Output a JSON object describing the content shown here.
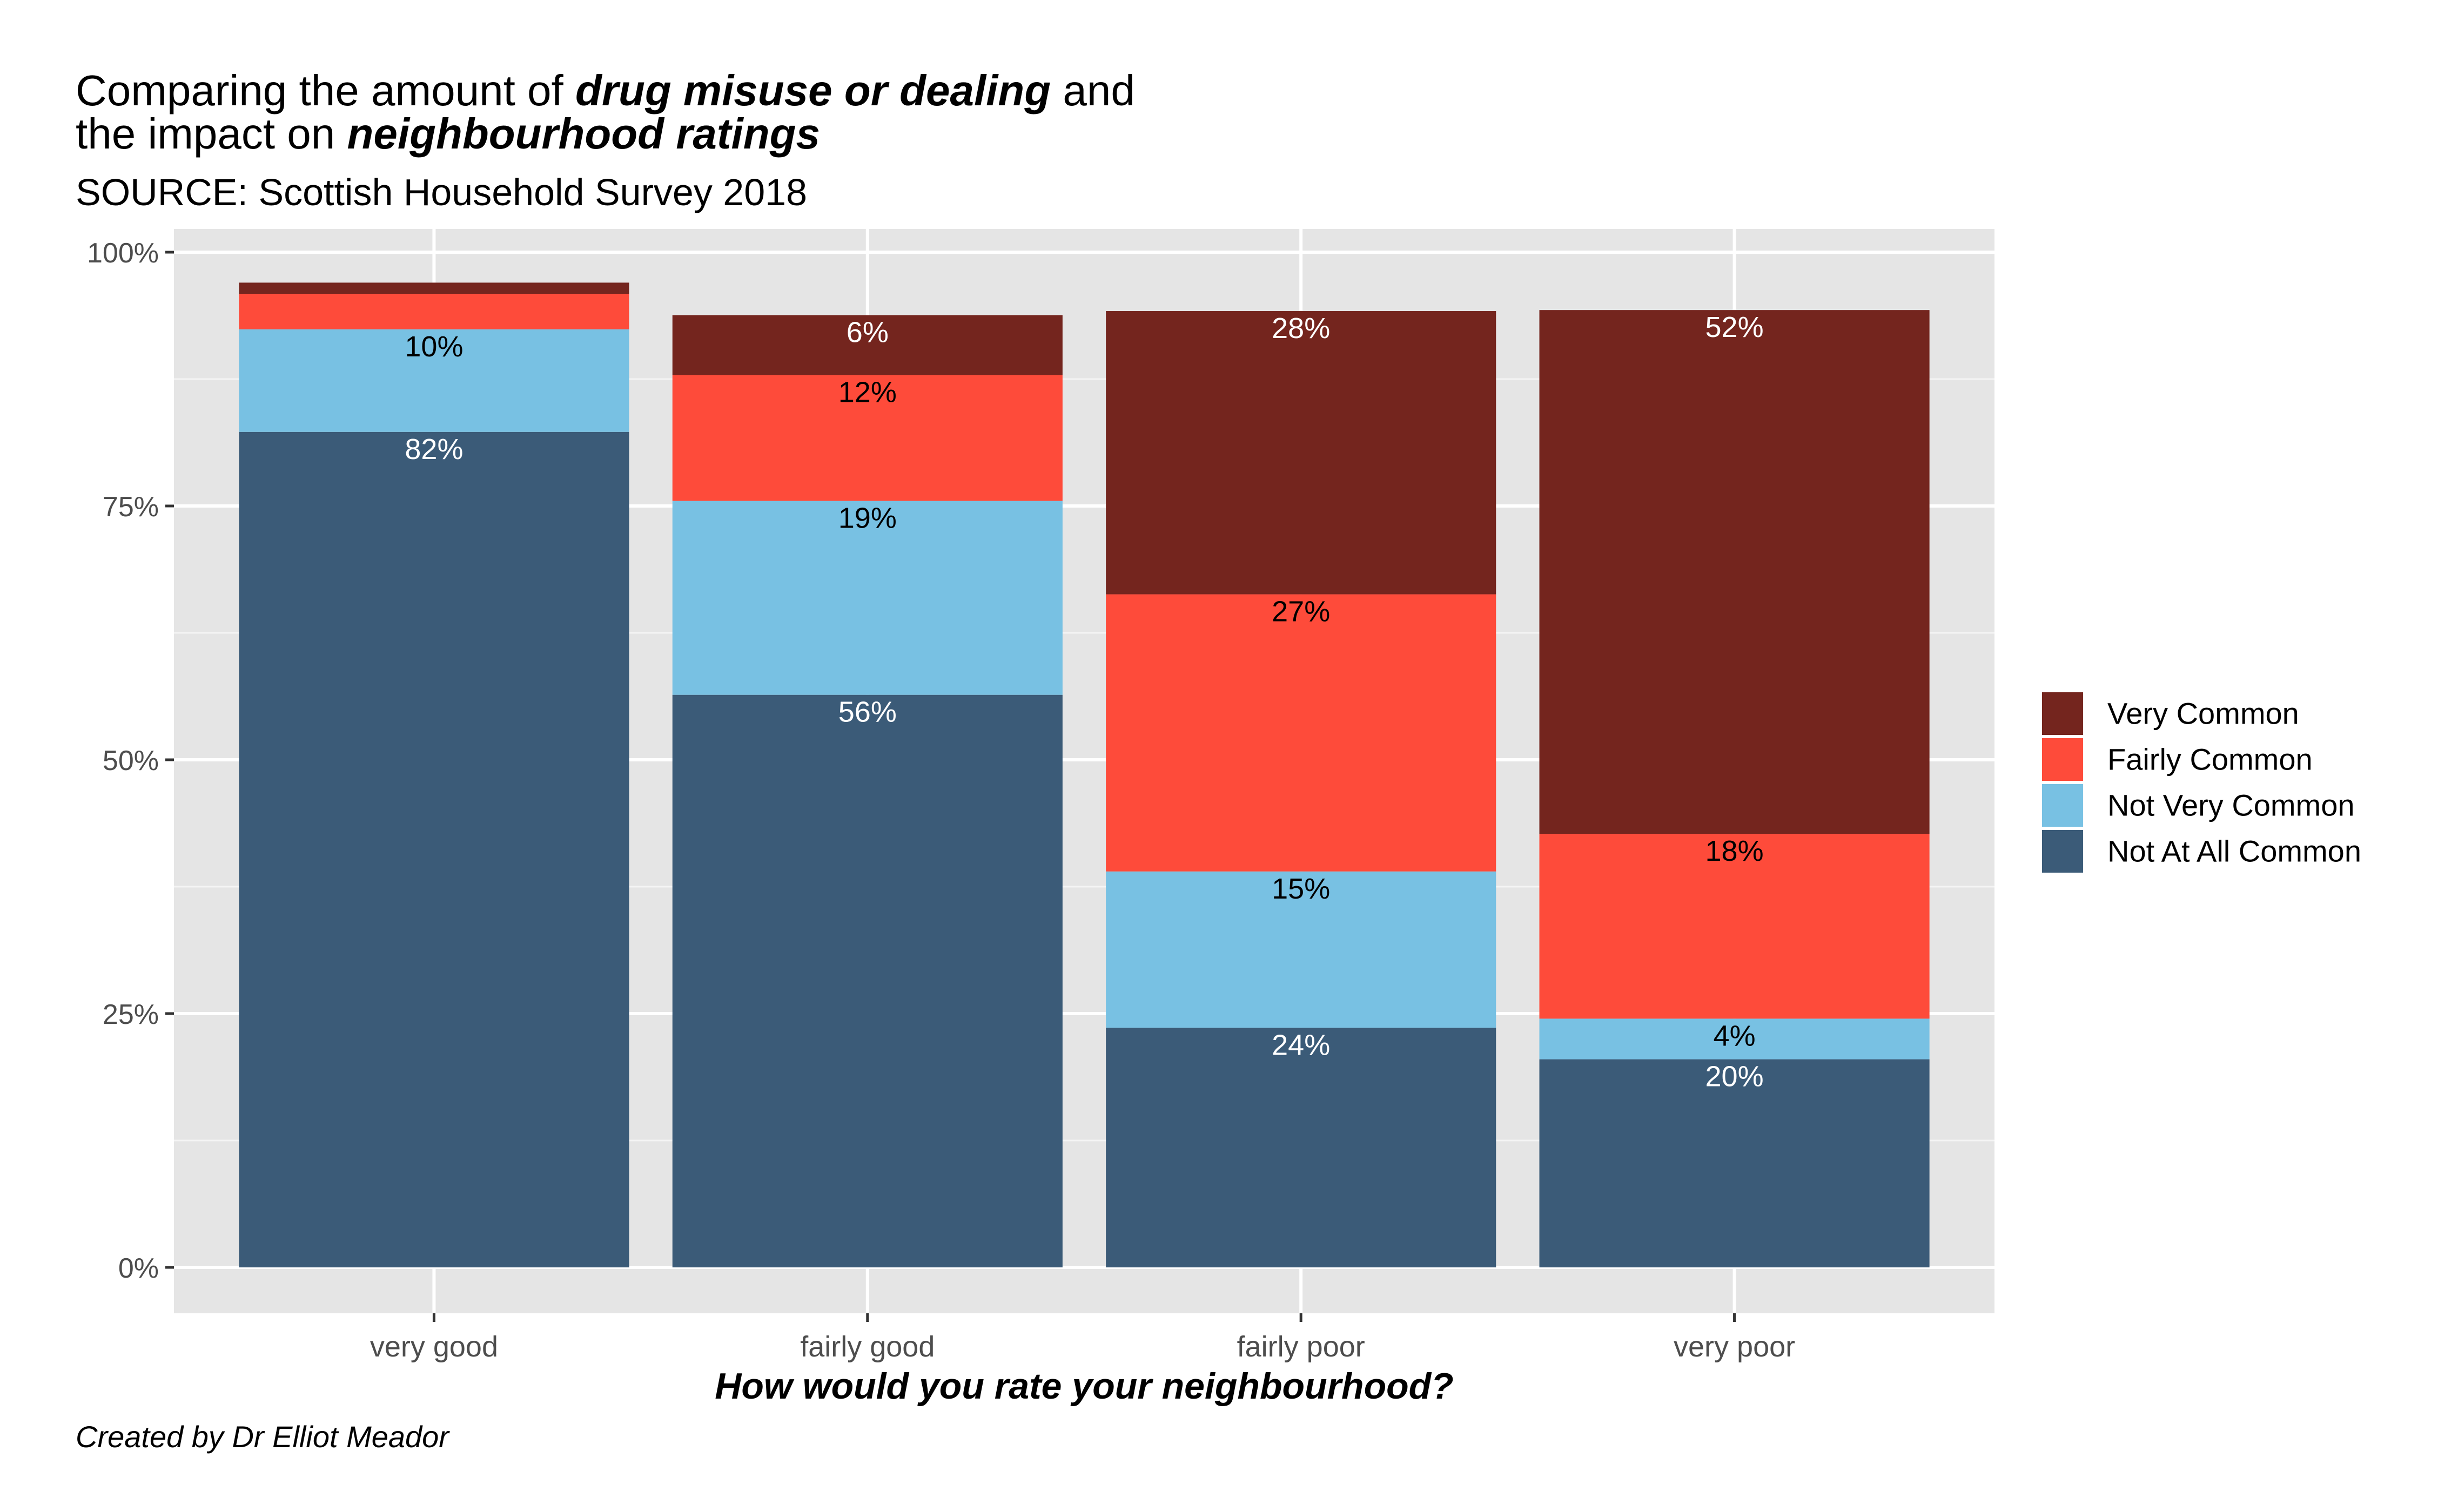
{
  "chart_data": {
    "type": "bar",
    "stacked": true,
    "title": {
      "segments": [
        {
          "text": "Comparing the amount of ",
          "emphasis": false,
          "line": 1
        },
        {
          "text": "drug misuse or dealing",
          "emphasis": true,
          "line": 1
        },
        {
          "text": " and",
          "emphasis": false,
          "line": 1
        },
        {
          "text": "the impact on ",
          "emphasis": false,
          "line": 2
        },
        {
          "text": "neighbourhood ratings",
          "emphasis": true,
          "line": 2
        }
      ]
    },
    "subtitle": "SOURCE: Scottish Household Survey 2018",
    "caption": "Created by Dr Elliot Meador",
    "xlabel": "How would you rate your neighbourhood?",
    "ylabel": "",
    "categories": [
      "very good",
      "fairly good",
      "fairly poor",
      "very poor"
    ],
    "ylim": [
      0,
      100
    ],
    "y_ticks": [
      0,
      25,
      50,
      75,
      100
    ],
    "y_tick_labels": [
      "0%",
      "25%",
      "50%",
      "75%",
      "100%"
    ],
    "grid": true,
    "legend_position": "right",
    "series": [
      {
        "name": "Not At All Common",
        "color": "#3b5b78",
        "label_color": "#ffffff",
        "values": [
          82.3,
          56.4,
          23.6,
          20.5
        ],
        "labels": [
          "82%",
          "56%",
          "24%",
          "20%"
        ]
      },
      {
        "name": "Not Very Common",
        "color": "#78c1e3",
        "label_color": "#000000",
        "values": [
          10.1,
          19.1,
          15.4,
          4.0
        ],
        "labels": [
          "10%",
          "19%",
          "15%",
          "4%"
        ]
      },
      {
        "name": "Fairly Common",
        "color": "#fe4b3a",
        "label_color": "#000000",
        "values": [
          3.5,
          12.4,
          27.3,
          18.2
        ],
        "labels": [
          "",
          "12%",
          "27%",
          "18%"
        ]
      },
      {
        "name": "Very Common",
        "color": "#74251e",
        "label_color": "#ffffff",
        "values": [
          1.1,
          5.9,
          27.9,
          51.6
        ],
        "labels": [
          "",
          "6%",
          "28%",
          "52%"
        ]
      }
    ],
    "legend_order": [
      "Very Common",
      "Fairly Common",
      "Not Very Common",
      "Not At All Common"
    ]
  }
}
